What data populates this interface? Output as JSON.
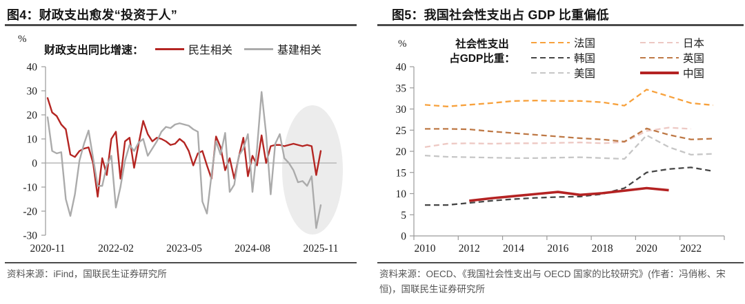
{
  "figure4": {
    "title": "图4：财政支出愈发“投资于人”",
    "unit": "%",
    "legend_header": "财政支出同比增速：",
    "source": "资料来源：iFind，国联民生证券研究所"
  },
  "figure5": {
    "title": "图5：我国社会性支出占 GDP 比重偏低",
    "unit": "%",
    "legend_header_line1": "社会性支出",
    "legend_header_line2": "占GDP比重：",
    "source": "资料来源：OECD、《我国社会性支出与 OECD 国家的比较研究》(作者：冯俏彬、宋恒)，国联民生证券研究所"
  },
  "chart_data": [
    {
      "id": "figure4",
      "type": "line",
      "title": "财政支出愈发“投资于人”",
      "legend_title": "财政支出同比增速：",
      "x_unit": "month",
      "x_start": "2020-11",
      "x_end": "2025-11",
      "x_tick_labels": [
        "2020-11",
        "2022-02",
        "2023-05",
        "2024-08",
        "2025-11"
      ],
      "ylabel": "%",
      "ylim": [
        -30,
        40
      ],
      "y_ticks": [
        40,
        30,
        20,
        10,
        0,
        -10,
        -20,
        -30
      ],
      "grid": false,
      "legend_position": "top",
      "highlight": {
        "shape": "ellipse",
        "x_range": [
          "2025-01",
          "2025-11"
        ],
        "color": "#ECECEC"
      },
      "series": [
        {
          "name": "民生相关",
          "color": "#B42522",
          "style": "solid",
          "values": [
            27,
            21,
            19.5,
            16,
            14,
            3.5,
            2.5,
            5,
            6,
            6.5,
            0,
            -14,
            2,
            -5,
            10,
            13,
            -6.5,
            9,
            10.5,
            -2,
            8,
            17.5,
            12,
            9,
            10.5,
            10,
            9,
            7.5,
            8,
            10,
            8.5,
            5,
            -1,
            4,
            5,
            -1,
            -6.5,
            11,
            6.5,
            -3,
            2,
            -6.5,
            2.5,
            10.5,
            -5.5,
            3,
            -1,
            11.5,
            0,
            7,
            7.5,
            7.5,
            7,
            7.5,
            8,
            7.5,
            7,
            7.5,
            7,
            -5,
            5
          ]
        },
        {
          "name": "基建相关",
          "color": "#ABABAB",
          "style": "solid",
          "values": [
            19,
            5,
            4,
            4.5,
            -15,
            -22,
            -13,
            1,
            8,
            13.5,
            2,
            -9.5,
            -9.5,
            -1,
            3,
            -18.5,
            -10,
            1,
            7.5,
            5,
            8.5,
            10,
            3,
            6,
            9,
            13,
            15,
            14.5,
            16,
            16.5,
            16,
            15.5,
            14,
            13,
            -16,
            -21,
            -5,
            9,
            3.5,
            12.5,
            -12,
            -9,
            3,
            6,
            12,
            -12,
            6,
            29.5,
            12,
            -13,
            8,
            12,
            2,
            0,
            -3,
            -8,
            -7.5,
            -9.5,
            -5.5,
            -27,
            -17.5
          ]
        }
      ]
    },
    {
      "id": "figure5",
      "type": "line",
      "title": "我国社会性支出占 GDP 比重偏低",
      "legend_title": "社会性支出占GDP比重：",
      "x_unit": "year",
      "x_tick_labels": [
        "2010",
        "2012",
        "2014",
        "2016",
        "2018",
        "2020",
        "2022"
      ],
      "ylabel": "%",
      "ylim": [
        0,
        40
      ],
      "y_ticks": [
        0,
        5,
        10,
        15,
        20,
        25,
        30,
        35,
        40
      ],
      "grid": false,
      "legend_position": "top",
      "legend_columns": [
        [
          "法国",
          "韩国",
          "美国"
        ],
        [
          "日本",
          "英国",
          "中国"
        ]
      ],
      "series": [
        {
          "name": "法国",
          "color": "#F7A13C",
          "style": "dashed",
          "start_year": 2010,
          "values": [
            31.0,
            30.6,
            31.0,
            31.4,
            31.9,
            32.0,
            31.9,
            31.9,
            31.6,
            30.8,
            34.6,
            33.0,
            31.4,
            30.9
          ]
        },
        {
          "name": "日本",
          "color": "#EDC8C3",
          "style": "dashed",
          "start_year": 2010,
          "values": [
            21.0,
            21.8,
            21.9,
            21.8,
            21.9,
            21.9,
            22.0,
            22.1,
            21.9,
            22.2,
            24.8,
            25.6,
            25.3
          ]
        },
        {
          "name": "英国",
          "color": "#BE7845",
          "style": "dashed",
          "start_year": 2010,
          "values": [
            25.3,
            25.3,
            25.2,
            24.7,
            24.3,
            23.9,
            23.5,
            23.1,
            22.8,
            22.3,
            25.4,
            23.9,
            22.8,
            23.0
          ]
        },
        {
          "name": "美国",
          "color": "#C6C6C6",
          "style": "dashed",
          "start_year": 2010,
          "values": [
            19.0,
            18.7,
            18.6,
            18.5,
            18.4,
            18.4,
            18.5,
            18.6,
            18.4,
            18.2,
            23.8,
            21.0,
            19.2,
            19.4
          ]
        },
        {
          "name": "韩国",
          "color": "#454545",
          "style": "dashed",
          "start_year": 2010,
          "values": [
            7.3,
            7.3,
            7.8,
            8.3,
            8.7,
            9.0,
            9.2,
            9.3,
            9.9,
            11.3,
            15.0,
            15.8,
            16.2,
            15.3
          ]
        },
        {
          "name": "中国",
          "color": "#B42222",
          "style": "solid",
          "start_year": 2012,
          "values": [
            8.3,
            8.9,
            9.4,
            9.9,
            10.4,
            9.7,
            10.1,
            10.7,
            11.3,
            10.8
          ]
        }
      ]
    }
  ]
}
